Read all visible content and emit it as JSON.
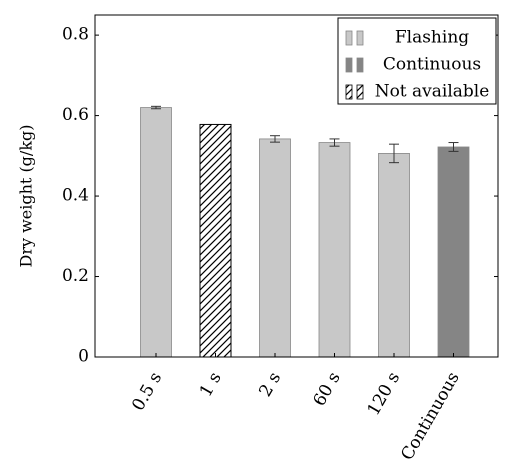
{
  "chart_data": {
    "type": "bar",
    "title": "",
    "xlabel": "",
    "ylabel": "Dry weight (g/kg)",
    "ylim": [
      0,
      0.85
    ],
    "yticks": [
      0,
      0.2,
      0.4,
      0.6,
      0.8
    ],
    "ytick_labels": [
      "0",
      "0.2",
      "0.4",
      "0.6",
      "0.8"
    ],
    "categories": [
      "0.5 s",
      "1 s",
      "2 s",
      "60 s",
      "120 s",
      "Continuous"
    ],
    "values": [
      0.62,
      0.578,
      0.542,
      0.533,
      0.506,
      0.522
    ],
    "error": [
      0.003,
      0.0,
      0.008,
      0.009,
      0.023,
      0.011
    ],
    "bar_kind": [
      "flashing",
      "not_available",
      "flashing",
      "flashing",
      "flashing",
      "continuous"
    ],
    "grid": false,
    "legend_position": "top-right",
    "legend": [
      {
        "key": "flashing",
        "label": "Flashing"
      },
      {
        "key": "continuous",
        "label": "Continuous"
      },
      {
        "key": "not_available",
        "label": "Not available"
      }
    ],
    "colors": {
      "flashing": "#c8c8c8",
      "continuous": "#858585",
      "not_available_stroke": "#000000",
      "bar_outline": "#888888"
    }
  }
}
